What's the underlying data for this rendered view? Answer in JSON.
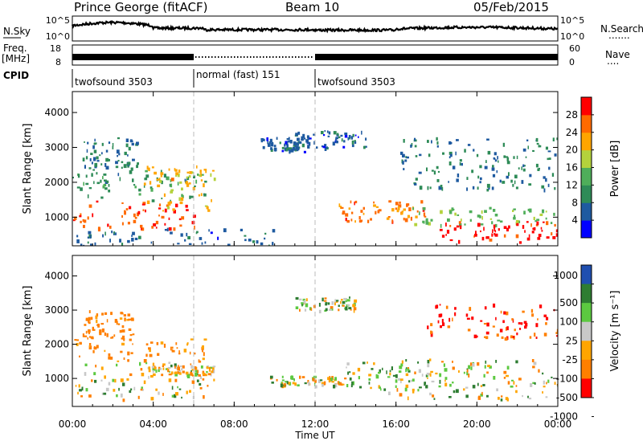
{
  "header": {
    "station": "Prince George (fitACF)",
    "beam": "Beam 10",
    "date": "05/Feb/2015"
  },
  "panels": {
    "nsky": {
      "label": "N.Sky",
      "left_ticks": [
        "10^5",
        "10^0"
      ],
      "right_ticks": [
        "10^5",
        "10^0"
      ],
      "right_label": "N.Search",
      "right_dots": "......."
    },
    "freq": {
      "label_top": "Freq.",
      "label_bottom": "[MHz]",
      "left_ticks": [
        "18",
        "8"
      ],
      "right_ticks": [
        "60",
        "0"
      ],
      "right_label": "Nave",
      "right_dots": "...."
    },
    "cpid": {
      "label": "CPID",
      "segments": [
        {
          "name": "twofsound 3503",
          "start": 0,
          "end": 6
        },
        {
          "name": "normal (fast) 151",
          "start": 6,
          "end": 12
        },
        {
          "name": "twofsound 3503",
          "start": 12,
          "end": 24
        }
      ]
    }
  },
  "power_panel": {
    "ylabel": "Slant Range [km]",
    "yticks": [
      "1000",
      "2000",
      "3000",
      "4000"
    ],
    "colorbar_label": "Power [dB]",
    "colorbar_ticks": [
      "4",
      "8",
      "12",
      "16",
      "20",
      "24",
      "28"
    ]
  },
  "velocity_panel": {
    "ylabel": "Slant Range [km]",
    "yticks": [
      "1000",
      "2000",
      "3000",
      "4000"
    ],
    "colorbar_label": "Velocity [m s⁻¹]",
    "colorbar_ticks": [
      "1000",
      "500",
      "100",
      "25",
      "-25",
      "-100",
      "-500",
      "-1000"
    ]
  },
  "xaxis": {
    "label": "Time UT",
    "ticks": [
      "00:00",
      "04:00",
      "08:00",
      "12:00",
      "16:00",
      "20:00",
      "00:00"
    ]
  },
  "colors": {
    "power_scale": [
      "#0000ff",
      "#1e5aa0",
      "#2e8b57",
      "#4fae5a",
      "#b4d23c",
      "#ffa500",
      "#ff6a00",
      "#ff0000"
    ],
    "velocity_scale": [
      "#1f4fb0",
      "#2e7d32",
      "#5cc940",
      "#c8c8c8",
      "#ffa500",
      "#ff7f00",
      "#ff0000"
    ]
  },
  "chart_data": [
    {
      "type": "heatmap",
      "title": "",
      "xlabel": "Time UT",
      "ylabel": "Slant Range [km]",
      "xlim": [
        0,
        24
      ],
      "ylim": [
        180,
        4600
      ],
      "value_name": "Power [dB]",
      "color_range": [
        0,
        30
      ],
      "regions": [
        {
          "x": [
            0,
            6.3
          ],
          "y": [
            700,
            1500
          ],
          "value": 26
        },
        {
          "x": [
            0,
            6.6
          ],
          "y": [
            1500,
            2400
          ],
          "value": 10
        },
        {
          "x": [
            0.5,
            3.2
          ],
          "y": [
            2400,
            3300
          ],
          "value": 8
        },
        {
          "x": [
            3.4,
            7.0
          ],
          "y": [
            1200,
            2500
          ],
          "value": 20
        },
        {
          "x": [
            0,
            10
          ],
          "y": [
            200,
            700
          ],
          "value": 6
        },
        {
          "x": [
            9.3,
            11.6
          ],
          "y": [
            2900,
            3300
          ],
          "value": 6
        },
        {
          "x": [
            11.0,
            14.5
          ],
          "y": [
            3000,
            3500
          ],
          "value": 6
        },
        {
          "x": [
            13.0,
            17.5
          ],
          "y": [
            900,
            1500
          ],
          "value": 24
        },
        {
          "x": [
            16.8,
            24
          ],
          "y": [
            800,
            1300
          ],
          "value": 14
        },
        {
          "x": [
            18.0,
            24
          ],
          "y": [
            300,
            900
          ],
          "value": 28
        },
        {
          "x": [
            16.2,
            24
          ],
          "y": [
            1800,
            3300
          ],
          "value": 8
        }
      ]
    },
    {
      "type": "heatmap",
      "title": "",
      "xlabel": "Time UT",
      "ylabel": "Slant Range [km]",
      "xlim": [
        0,
        24
      ],
      "ylim": [
        180,
        4600
      ],
      "value_name": "Velocity [m s⁻¹]",
      "color_range": [
        -1000,
        1000
      ],
      "regions": [
        {
          "x": [
            0,
            6.5
          ],
          "y": [
            1500,
            2200
          ],
          "value": -200
        },
        {
          "x": [
            0,
            7.0
          ],
          "y": [
            400,
            1500
          ],
          "value": 0
        },
        {
          "x": [
            3.5,
            7.0
          ],
          "y": [
            1100,
            1400
          ],
          "value": -100
        },
        {
          "x": [
            0.5,
            3.0
          ],
          "y": [
            2200,
            3000
          ],
          "value": -200
        },
        {
          "x": [
            9.5,
            13.5
          ],
          "y": [
            800,
            1100
          ],
          "value": 0
        },
        {
          "x": [
            13.5,
            17.5
          ],
          "y": [
            600,
            1500
          ],
          "value": 100
        },
        {
          "x": [
            16.0,
            24
          ],
          "y": [
            400,
            1600
          ],
          "value": 0
        },
        {
          "x": [
            17.5,
            24
          ],
          "y": [
            2200,
            3200
          ],
          "value": -500
        },
        {
          "x": [
            11.0,
            14.0
          ],
          "y": [
            3000,
            3400
          ],
          "value": 0
        }
      ]
    }
  ]
}
